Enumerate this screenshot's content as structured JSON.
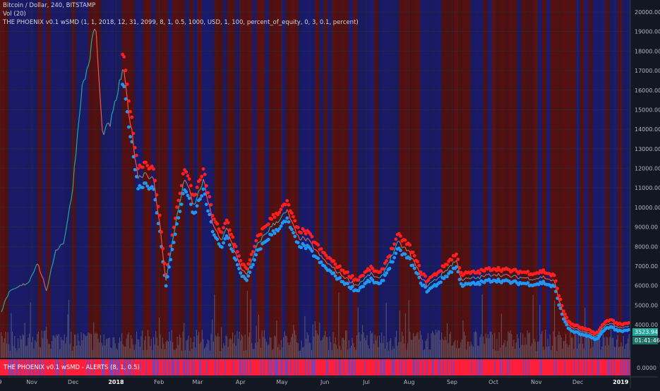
{
  "header": {
    "symbol_line": "Bitcoin / Dollar, 240, BITSTAMP",
    "volume_line": "Vol (20)",
    "indicator_line": "THE PHOENIX v0.1 wSMD (1, 1, 2018, 12, 31, 2099, 8, 1, 0.5, 1000, USD, 1, 100, percent_of_equity, 0, 3, 0.1, percent)"
  },
  "indicator_pane": {
    "label": "THE PHOENIX v0.1 wSMD - ALERTS (8, 1, 0.5)",
    "zero_label": "0.0000"
  },
  "price_badge": {
    "value": "3523.94",
    "timer": "01:41:46",
    "color": "#26a69a"
  },
  "colors": {
    "background": "#131722",
    "bull_band": "#1b1b6e",
    "bear_band": "#5a1010",
    "upper_markers": "#ff1f1f",
    "lower_markers": "#2196f3",
    "volume": "#7a7480",
    "candle_up": "#26a69a",
    "candle_down": "#ef5350"
  },
  "chart_data": {
    "type": "line",
    "title": "Bitcoin / Dollar, 240, BITSTAMP",
    "y_axis": {
      "ticks": [
        4000,
        5000,
        6000,
        7000,
        8000,
        9000,
        10000,
        11000,
        12000,
        13000,
        14000,
        15000,
        16000,
        17000,
        18000,
        19000,
        20000
      ],
      "tick_labels": [
        "4000.00",
        "5000.00",
        "6000.00",
        "7000.00",
        "8000.00",
        "9000.00",
        "10000.00",
        "11000.00",
        "12000.00",
        "13000.00",
        "14000.00",
        "15000.00",
        "16000.00",
        "17000.00",
        "18000.00",
        "19000.00",
        "20000.00"
      ],
      "range": [
        3300,
        20300
      ]
    },
    "x_axis": {
      "tick_labels": [
        "9",
        "Nov",
        "Dec",
        "2018",
        "Feb",
        "Mar",
        "Apr",
        "May",
        "Jun",
        "Jul",
        "Aug",
        "Sep",
        "Oct",
        "Nov",
        "Dec",
        "2019"
      ],
      "tick_dates": [
        "2017-10-09",
        "2017-11-01",
        "2017-12-01",
        "2018-01-01",
        "2018-02-01",
        "2018-03-01",
        "2018-04-01",
        "2018-05-01",
        "2018-06-01",
        "2018-07-01",
        "2018-08-01",
        "2018-09-01",
        "2018-10-01",
        "2018-11-01",
        "2018-12-01",
        "2019-01-01"
      ],
      "range": [
        "2017-10-09",
        "2019-01-08"
      ]
    },
    "series": [
      {
        "values": [
          [
            "2017-10-09",
            4500
          ],
          [
            "2017-10-15",
            5600
          ],
          [
            "2017-10-22",
            5900
          ],
          [
            "2017-10-30",
            6200
          ],
          [
            "2017-11-05",
            7200
          ],
          [
            "2017-11-12",
            5700
          ],
          [
            "2017-11-18",
            7800
          ],
          [
            "2017-11-24",
            8200
          ],
          [
            "2017-11-30",
            10600
          ],
          [
            "2017-12-07",
            16000
          ],
          [
            "2017-12-12",
            17300
          ],
          [
            "2017-12-17",
            19500
          ],
          [
            "2017-12-22",
            13800
          ],
          [
            "2017-12-28",
            14300
          ],
          [
            "2018-01-06",
            17100
          ],
          [
            "2018-01-12",
            14000
          ],
          [
            "2018-01-17",
            11500
          ],
          [
            "2018-01-22",
            11800
          ],
          [
            "2018-01-28",
            11400
          ],
          [
            "2018-02-02",
            8900
          ],
          [
            "2018-02-06",
            6200
          ],
          [
            "2018-02-12",
            8800
          ],
          [
            "2018-02-20",
            11600
          ],
          [
            "2018-02-26",
            10000
          ],
          [
            "2018-03-05",
            11400
          ],
          [
            "2018-03-12",
            9200
          ],
          [
            "2018-03-18",
            8200
          ],
          [
            "2018-03-22",
            9000
          ],
          [
            "2018-04-01",
            6900
          ],
          [
            "2018-04-06",
            6600
          ],
          [
            "2018-04-14",
            8200
          ],
          [
            "2018-04-23",
            9000
          ],
          [
            "2018-05-05",
            9800
          ],
          [
            "2018-05-12",
            8500
          ],
          [
            "2018-05-20",
            8300
          ],
          [
            "2018-05-30",
            7400
          ],
          [
            "2018-06-10",
            6700
          ],
          [
            "2018-06-24",
            6000
          ],
          [
            "2018-07-04",
            6600
          ],
          [
            "2018-07-11",
            6300
          ],
          [
            "2018-07-24",
            8200
          ],
          [
            "2018-08-01",
            7700
          ],
          [
            "2018-08-10",
            6400
          ],
          [
            "2018-08-14",
            6000
          ],
          [
            "2018-08-22",
            6400
          ],
          [
            "2018-09-04",
            7300
          ],
          [
            "2018-09-08",
            6300
          ],
          [
            "2018-09-20",
            6400
          ],
          [
            "2018-10-01",
            6600
          ],
          [
            "2018-10-15",
            6450
          ],
          [
            "2018-10-31",
            6350
          ],
          [
            "2018-11-06",
            6450
          ],
          [
            "2018-11-14",
            6200
          ],
          [
            "2018-11-20",
            4600
          ],
          [
            "2018-11-25",
            3900
          ],
          [
            "2018-12-06",
            3600
          ],
          [
            "2018-12-15",
            3400
          ],
          [
            "2018-12-20",
            3900
          ],
          [
            "2018-12-24",
            4100
          ],
          [
            "2019-01-01",
            3800
          ],
          [
            "2019-01-07",
            3900
          ],
          [
            "2019-01-08",
            3550
          ]
        ]
      }
    ],
    "annotations": [
      "3523.94",
      "01:41:46"
    ],
    "grid": true
  }
}
